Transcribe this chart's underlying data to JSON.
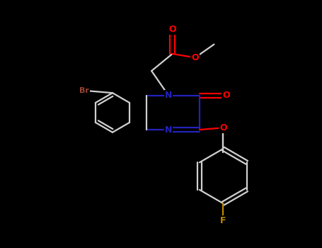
{
  "background_color": "#000000",
  "bond_color": "#d0d0d0",
  "atom_colors": {
    "O": "#ff0000",
    "N": "#2222bb",
    "Br": "#994433",
    "F": "#bb8800"
  },
  "figsize": [
    4.55,
    3.5
  ],
  "dpi": 100
}
